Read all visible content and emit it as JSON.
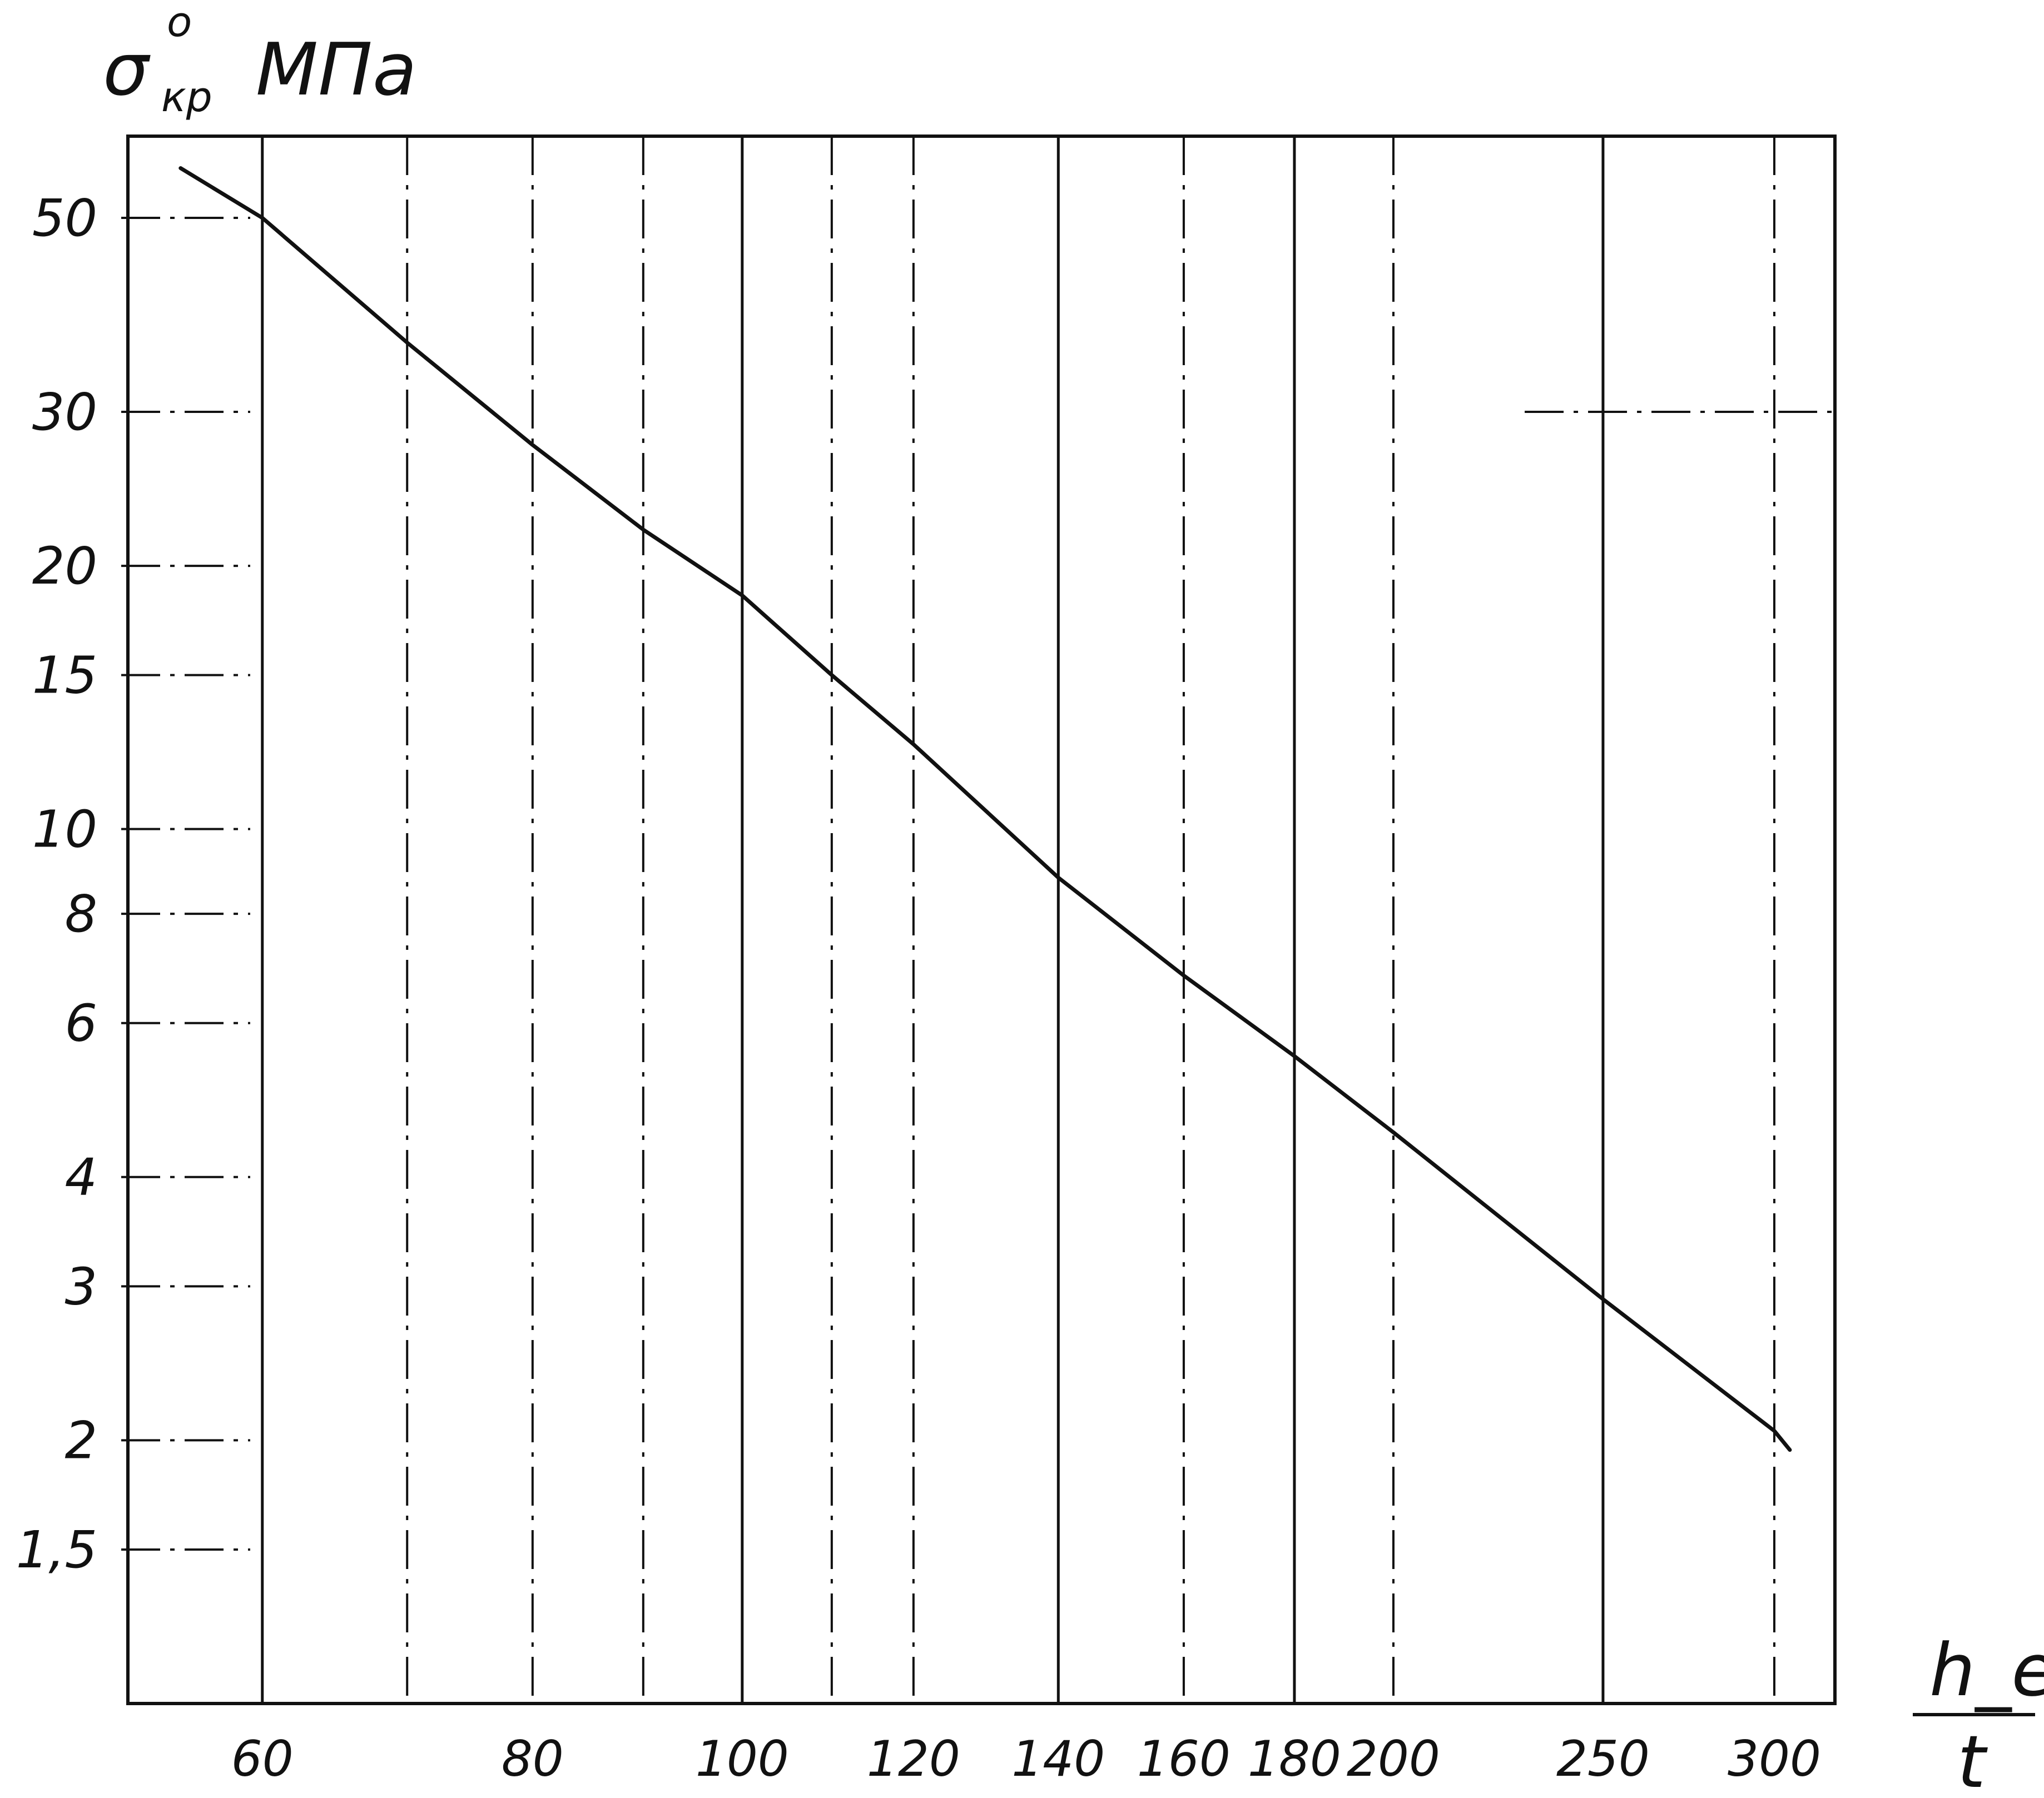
{
  "chart_data": {
    "type": "line",
    "title": "",
    "ylabel": {
      "symbol": "σ",
      "superscript": "o",
      "subscript": "кр",
      "unit": "МПа"
    },
    "xlabel": {
      "numerator": "h_ef",
      "denominator": "t"
    },
    "x_scale": "log",
    "y_scale": "log",
    "xlim": [
      52,
      320
    ],
    "ylim": [
      1.0,
      62
    ],
    "x_ticks": [
      60,
      80,
      100,
      120,
      140,
      160,
      180,
      200,
      250,
      300
    ],
    "x_tick_labels": [
      "60",
      "80",
      "100",
      "120",
      "140",
      "160",
      "180",
      "200",
      "250",
      "300"
    ],
    "y_ticks": [
      1.5,
      2,
      3,
      4,
      6,
      8,
      10,
      15,
      20,
      30,
      50
    ],
    "y_tick_labels": [
      "1,5",
      "2",
      "3",
      "4",
      "6",
      "8",
      "10",
      "15",
      "20",
      "30",
      "50"
    ],
    "grid": true,
    "series": [
      {
        "x": [
          55,
          60,
          70,
          80,
          90,
          100,
          110,
          120,
          140,
          160,
          180,
          200,
          250,
          300,
          305
        ],
        "y": [
          57,
          50,
          36,
          27.5,
          22,
          18.5,
          15,
          12.5,
          8.8,
          6.8,
          5.5,
          4.5,
          2.9,
          2.05,
          1.95
        ]
      }
    ]
  }
}
